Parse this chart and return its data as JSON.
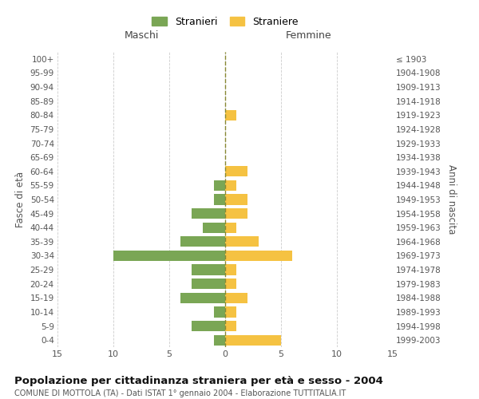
{
  "age_groups": [
    "0-4",
    "5-9",
    "10-14",
    "15-19",
    "20-24",
    "25-29",
    "30-34",
    "35-39",
    "40-44",
    "45-49",
    "50-54",
    "55-59",
    "60-64",
    "65-69",
    "70-74",
    "75-79",
    "80-84",
    "85-89",
    "90-94",
    "95-99",
    "100+"
  ],
  "birth_years": [
    "1999-2003",
    "1994-1998",
    "1989-1993",
    "1984-1988",
    "1979-1983",
    "1974-1978",
    "1969-1973",
    "1964-1968",
    "1959-1963",
    "1954-1958",
    "1949-1953",
    "1944-1948",
    "1939-1943",
    "1934-1938",
    "1929-1933",
    "1924-1928",
    "1919-1923",
    "1914-1918",
    "1909-1913",
    "1904-1908",
    "≤ 1903"
  ],
  "males": [
    1,
    3,
    1,
    4,
    3,
    3,
    10,
    4,
    2,
    3,
    1,
    1,
    0,
    0,
    0,
    0,
    0,
    0,
    0,
    0,
    0
  ],
  "females": [
    5,
    1,
    1,
    2,
    1,
    1,
    6,
    3,
    1,
    2,
    2,
    1,
    2,
    0,
    0,
    0,
    1,
    0,
    0,
    0,
    0
  ],
  "male_color": "#7aa655",
  "female_color": "#f5c242",
  "title": "Popolazione per cittadinanza straniera per età e sesso - 2004",
  "subtitle": "COMUNE DI MOTTOLA (TA) - Dati ISTAT 1° gennaio 2004 - Elaborazione TUTTITALIA.IT",
  "xlabel_left": "Maschi",
  "xlabel_right": "Femmine",
  "ylabel_left": "Fasce di età",
  "ylabel_right": "Anni di nascita",
  "legend_stranieri": "Stranieri",
  "legend_straniere": "Straniere",
  "xlim": 15,
  "background_color": "#ffffff",
  "grid_color": "#cccccc"
}
